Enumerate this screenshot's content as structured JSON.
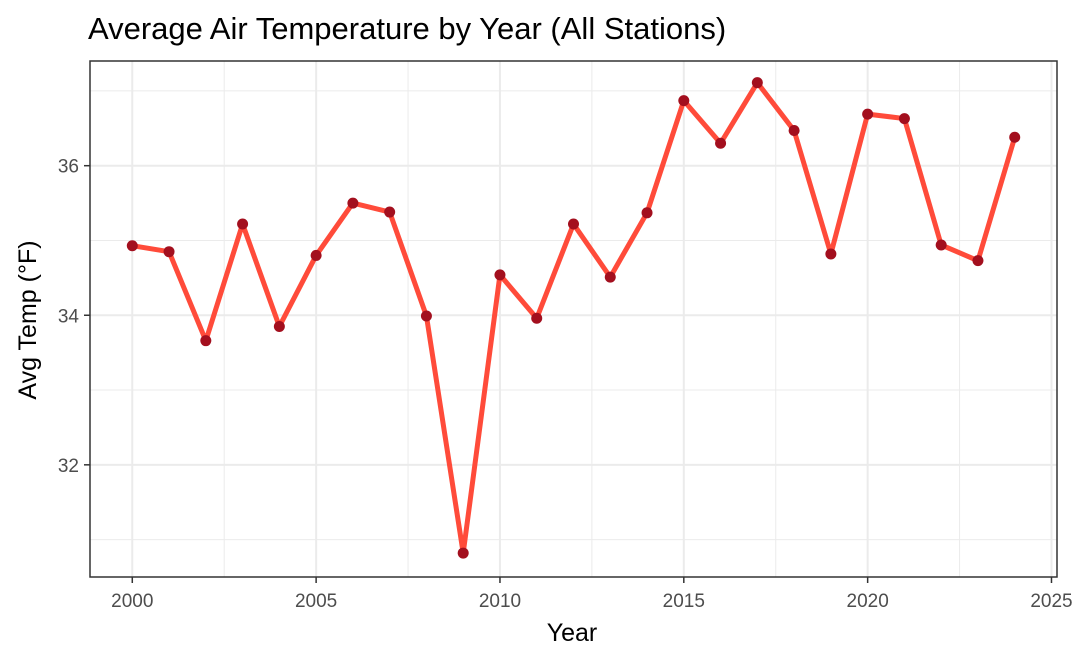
{
  "chart_data": {
    "type": "line",
    "title": "Average Air Temperature by Year (All Stations)",
    "xlabel": "Year",
    "ylabel": "Avg Temp (°F)",
    "xlim": [
      1998.85,
      2025.15
    ],
    "ylim": [
      30.5,
      37.4
    ],
    "x_ticks": [
      2000,
      2005,
      2010,
      2015,
      2020,
      2025
    ],
    "x_tick_labels": [
      "2000",
      "2005",
      "2010",
      "2015",
      "2020",
      "2025"
    ],
    "y_ticks": [
      32,
      34,
      36
    ],
    "y_tick_labels": [
      "32",
      "34",
      "36"
    ],
    "grid": true,
    "legend": "none",
    "colors": {
      "line": "#ff4b3a",
      "points": "#a30f1e",
      "grid": "#ebebeb",
      "panel_border": "#333333"
    },
    "series": [
      {
        "x": [
          2000,
          2001,
          2002,
          2003,
          2004,
          2005,
          2006,
          2007,
          2008,
          2009,
          2010,
          2011,
          2012,
          2013,
          2014,
          2015,
          2016,
          2017,
          2018,
          2019,
          2020,
          2021,
          2022,
          2023,
          2024
        ],
        "values": [
          34.93,
          34.85,
          33.66,
          35.22,
          33.85,
          34.8,
          35.5,
          35.38,
          33.99,
          30.82,
          34.54,
          33.96,
          35.22,
          34.51,
          35.37,
          36.87,
          36.3,
          37.11,
          36.47,
          34.82,
          36.69,
          36.63,
          34.94,
          34.73,
          36.38
        ]
      }
    ]
  }
}
